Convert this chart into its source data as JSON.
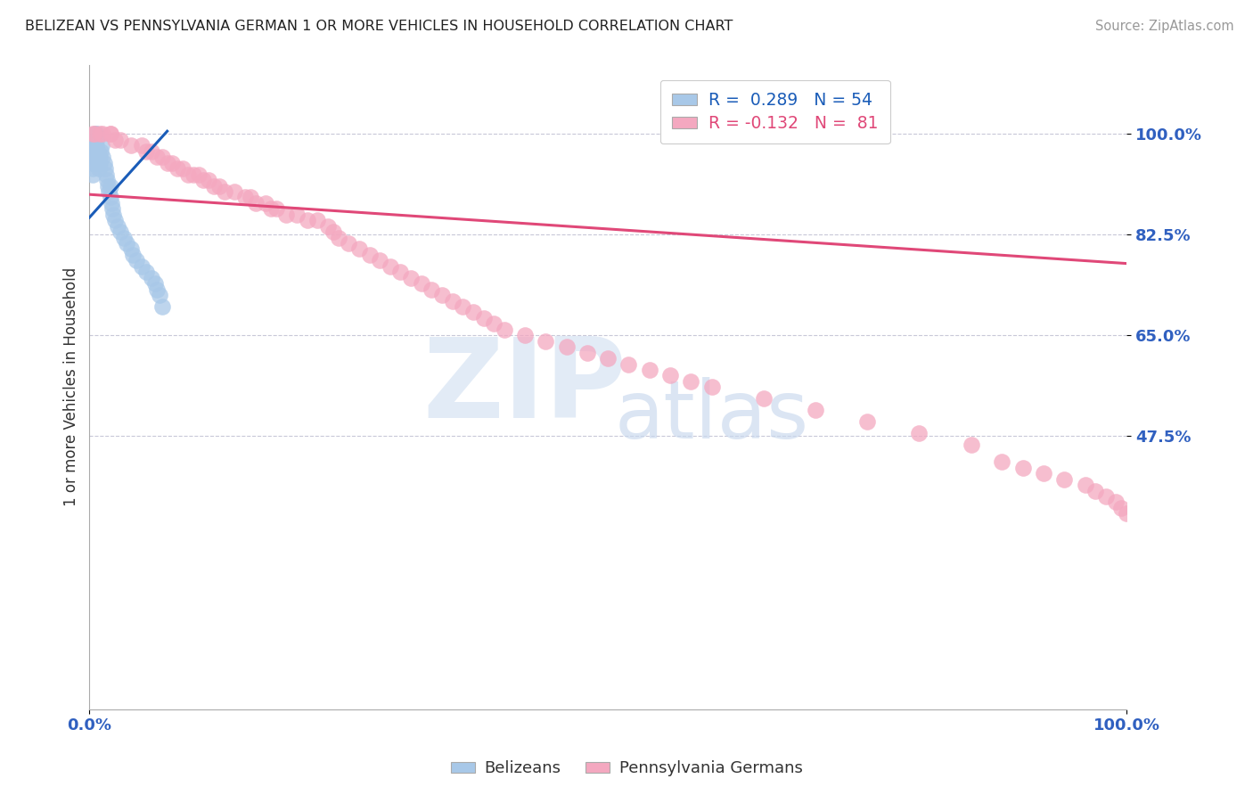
{
  "title": "BELIZEAN VS PENNSYLVANIA GERMAN 1 OR MORE VEHICLES IN HOUSEHOLD CORRELATION CHART",
  "source": "Source: ZipAtlas.com",
  "ylabel": "1 or more Vehicles in Household",
  "blue_color": "#a8c8e8",
  "pink_color": "#f4a8c0",
  "blue_line_color": "#1a5cb8",
  "pink_line_color": "#e04878",
  "background_color": "#ffffff",
  "grid_color": "#c8c8d8",
  "belizean_x": [
    0.003,
    0.003,
    0.003,
    0.003,
    0.003,
    0.004,
    0.004,
    0.004,
    0.004,
    0.005,
    0.005,
    0.005,
    0.005,
    0.006,
    0.006,
    0.006,
    0.007,
    0.007,
    0.007,
    0.008,
    0.008,
    0.009,
    0.009,
    0.01,
    0.01,
    0.011,
    0.012,
    0.013,
    0.014,
    0.015,
    0.016,
    0.017,
    0.018,
    0.019,
    0.02,
    0.02,
    0.021,
    0.022,
    0.023,
    0.025,
    0.027,
    0.03,
    0.033,
    0.036,
    0.04,
    0.042,
    0.045,
    0.05,
    0.055,
    0.06,
    0.063,
    0.065,
    0.068,
    0.07
  ],
  "belizean_y": [
    0.97,
    0.96,
    0.95,
    0.94,
    0.93,
    0.98,
    0.97,
    0.96,
    0.95,
    0.99,
    0.98,
    0.97,
    0.96,
    1.0,
    0.99,
    0.98,
    1.0,
    0.99,
    0.98,
    0.97,
    0.96,
    0.95,
    0.94,
    0.96,
    0.95,
    0.97,
    0.98,
    0.96,
    0.95,
    0.94,
    0.93,
    0.92,
    0.91,
    0.9,
    0.91,
    0.89,
    0.88,
    0.87,
    0.86,
    0.85,
    0.84,
    0.83,
    0.82,
    0.81,
    0.8,
    0.79,
    0.78,
    0.77,
    0.76,
    0.75,
    0.74,
    0.73,
    0.72,
    0.7
  ],
  "penn_german_x": [
    0.003,
    0.005,
    0.01,
    0.013,
    0.02,
    0.02,
    0.025,
    0.03,
    0.04,
    0.05,
    0.055,
    0.06,
    0.065,
    0.07,
    0.075,
    0.08,
    0.085,
    0.09,
    0.095,
    0.1,
    0.105,
    0.11,
    0.115,
    0.12,
    0.125,
    0.13,
    0.14,
    0.15,
    0.155,
    0.16,
    0.17,
    0.175,
    0.18,
    0.19,
    0.2,
    0.21,
    0.22,
    0.23,
    0.235,
    0.24,
    0.25,
    0.26,
    0.27,
    0.28,
    0.29,
    0.3,
    0.31,
    0.32,
    0.33,
    0.34,
    0.35,
    0.36,
    0.37,
    0.38,
    0.39,
    0.4,
    0.42,
    0.44,
    0.46,
    0.48,
    0.5,
    0.52,
    0.54,
    0.56,
    0.58,
    0.6,
    0.65,
    0.7,
    0.75,
    0.8,
    0.85,
    0.88,
    0.9,
    0.92,
    0.94,
    0.96,
    0.97,
    0.98,
    0.99,
    0.995,
    1.0
  ],
  "penn_german_y": [
    1.0,
    1.0,
    1.0,
    1.0,
    1.0,
    1.0,
    0.99,
    0.99,
    0.98,
    0.98,
    0.97,
    0.97,
    0.96,
    0.96,
    0.95,
    0.95,
    0.94,
    0.94,
    0.93,
    0.93,
    0.93,
    0.92,
    0.92,
    0.91,
    0.91,
    0.9,
    0.9,
    0.89,
    0.89,
    0.88,
    0.88,
    0.87,
    0.87,
    0.86,
    0.86,
    0.85,
    0.85,
    0.84,
    0.83,
    0.82,
    0.81,
    0.8,
    0.79,
    0.78,
    0.77,
    0.76,
    0.75,
    0.74,
    0.73,
    0.72,
    0.71,
    0.7,
    0.69,
    0.68,
    0.67,
    0.66,
    0.65,
    0.64,
    0.63,
    0.62,
    0.61,
    0.6,
    0.59,
    0.58,
    0.57,
    0.56,
    0.54,
    0.52,
    0.5,
    0.48,
    0.46,
    0.43,
    0.42,
    0.41,
    0.4,
    0.39,
    0.38,
    0.37,
    0.36,
    0.35,
    0.34
  ],
  "blue_trend_x": [
    0.0,
    0.075
  ],
  "blue_trend_y": [
    0.855,
    1.005
  ],
  "pink_trend_x": [
    0.0,
    1.0
  ],
  "pink_trend_y": [
    0.895,
    0.775
  ],
  "xlim": [
    0.0,
    1.0
  ],
  "ylim": [
    0.0,
    1.12
  ],
  "ytick_vals": [
    0.475,
    0.65,
    0.825,
    1.0
  ],
  "ytick_labels": [
    "47.5%",
    "65.0%",
    "82.5%",
    "100.0%"
  ],
  "xtick_vals": [
    0.0,
    1.0
  ],
  "xtick_labels": [
    "0.0%",
    "100.0%"
  ]
}
